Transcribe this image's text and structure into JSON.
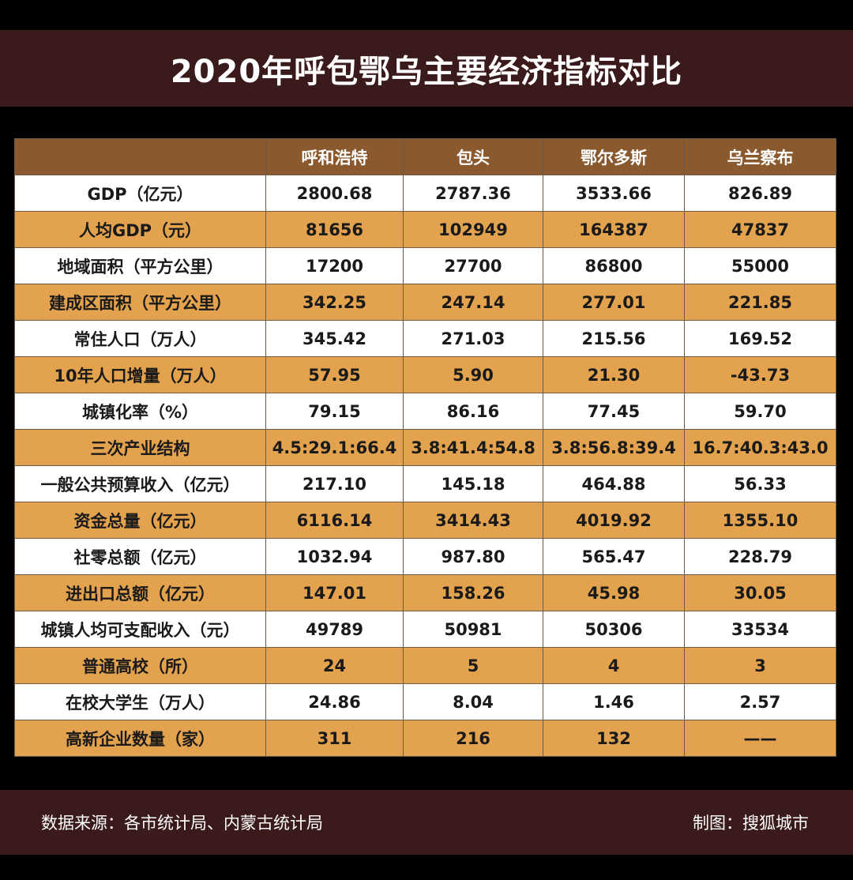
{
  "title": "2020年呼包鄂乌主要经济指标对比",
  "table": {
    "headers": [
      "",
      "呼和浩特",
      "包头",
      "鄂尔多斯",
      "乌兰察布"
    ],
    "rows": [
      {
        "label": "GDP（亿元）",
        "values": [
          "2800.68",
          "2787.36",
          "3533.66",
          "826.89"
        ]
      },
      {
        "label": "人均GDP（元）",
        "values": [
          "81656",
          "102949",
          "164387",
          "47837"
        ]
      },
      {
        "label": "地域面积（平方公里）",
        "values": [
          "17200",
          "27700",
          "86800",
          "55000"
        ]
      },
      {
        "label": "建成区面积（平方公里）",
        "values": [
          "342.25",
          "247.14",
          "277.01",
          "221.85"
        ]
      },
      {
        "label": "常住人口（万人）",
        "values": [
          "345.42",
          "271.03",
          "215.56",
          "169.52"
        ]
      },
      {
        "label": "10年人口增量（万人）",
        "values": [
          "57.95",
          "5.90",
          "21.30",
          "-43.73"
        ]
      },
      {
        "label": "城镇化率（%）",
        "values": [
          "79.15",
          "86.16",
          "77.45",
          "59.70"
        ]
      },
      {
        "label": "三次产业结构",
        "values": [
          "4.5:29.1:66.4",
          "3.8:41.4:54.8",
          "3.8:56.8:39.4",
          "16.7:40.3:43.0"
        ]
      },
      {
        "label": "一般公共预算收入（亿元）",
        "values": [
          "217.10",
          "145.18",
          "464.88",
          "56.33"
        ]
      },
      {
        "label": "资金总量（亿元）",
        "values": [
          "6116.14",
          "3414.43",
          "4019.92",
          "1355.10"
        ]
      },
      {
        "label": "社零总额（亿元）",
        "values": [
          "1032.94",
          "987.80",
          "565.47",
          "228.79"
        ]
      },
      {
        "label": "进出口总额（亿元）",
        "values": [
          "147.01",
          "158.26",
          "45.98",
          "30.05"
        ]
      },
      {
        "label": "城镇人均可支配收入（元）",
        "values": [
          "49789",
          "50981",
          "50306",
          "33534"
        ]
      },
      {
        "label": "普通高校（所）",
        "values": [
          "24",
          "5",
          "4",
          "3"
        ]
      },
      {
        "label": "在校大学生（万人）",
        "values": [
          "24.86",
          "8.04",
          "1.46",
          "2.57"
        ]
      },
      {
        "label": "高新企业数量（家）",
        "values": [
          "311",
          "216",
          "132",
          "——"
        ]
      }
    ]
  },
  "footer": {
    "source": "数据来源：各市统计局、内蒙古统计局",
    "credit": "制图：搜狐城市"
  }
}
